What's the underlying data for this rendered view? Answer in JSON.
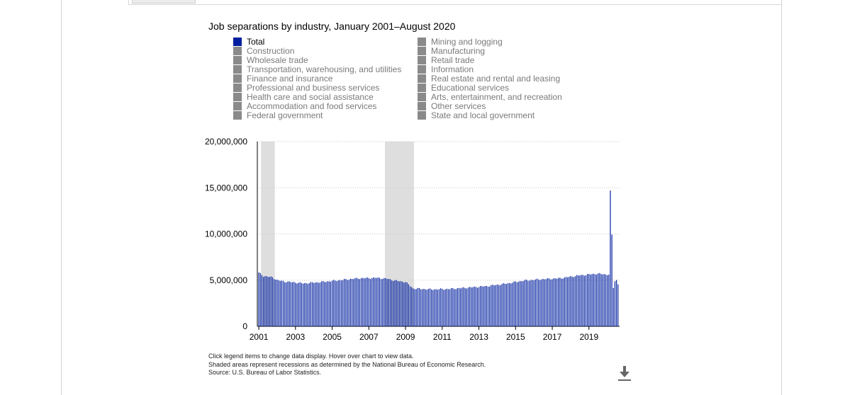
{
  "chart_data": {
    "type": "bar",
    "title": "Job separations by industry, January 2001–August 2020",
    "xlabel": "",
    "ylabel": "",
    "ylim": [
      0,
      20000000
    ],
    "yticks": [
      "0",
      "5,000,000",
      "10,000,000",
      "15,000,000",
      "20,000,000"
    ],
    "xticks": [
      "2001",
      "2003",
      "2005",
      "2007",
      "2009",
      "2011",
      "2013",
      "2015",
      "2017",
      "2019"
    ],
    "grid": true,
    "legend_position": "top",
    "bar_color": "#001f9f",
    "recession_color": "#dedede",
    "recessions": [
      {
        "start": "2001-03",
        "end": "2001-11"
      },
      {
        "start": "2007-12",
        "end": "2009-06"
      }
    ],
    "series": [
      {
        "name": "Total",
        "x_start": "2001-01",
        "x_end": "2020-08",
        "anchors": [
          [
            "2001-01",
            5800000
          ],
          [
            "2001-04",
            5450000
          ],
          [
            "2001-10",
            5300000
          ],
          [
            "2002-01",
            5000000
          ],
          [
            "2002-06",
            4850000
          ],
          [
            "2003-01",
            4750000
          ],
          [
            "2003-06",
            4650000
          ],
          [
            "2004-06",
            4800000
          ],
          [
            "2005-06",
            5000000
          ],
          [
            "2006-06",
            5200000
          ],
          [
            "2007-06",
            5250000
          ],
          [
            "2008-01",
            5150000
          ],
          [
            "2008-06",
            4950000
          ],
          [
            "2009-01",
            4800000
          ],
          [
            "2009-06",
            4100000
          ],
          [
            "2010-06",
            4000000
          ],
          [
            "2011-06",
            4050000
          ],
          [
            "2012-06",
            4200000
          ],
          [
            "2013-06",
            4350000
          ],
          [
            "2014-06",
            4600000
          ],
          [
            "2015-06",
            4950000
          ],
          [
            "2016-06",
            5100000
          ],
          [
            "2017-06",
            5200000
          ],
          [
            "2018-06",
            5500000
          ],
          [
            "2019-06",
            5700000
          ],
          [
            "2020-02",
            5600000
          ],
          [
            "2020-03",
            14600000
          ],
          [
            "2020-04",
            9900000
          ],
          [
            "2020-05",
            4200000
          ],
          [
            "2020-06",
            4900000
          ],
          [
            "2020-07",
            5000000
          ],
          [
            "2020-08",
            4600000
          ]
        ]
      }
    ]
  },
  "legend": {
    "left": [
      "Total",
      "Construction",
      "Wholesale trade",
      "Transportation, warehousing, and utilities",
      "Finance and insurance",
      "Professional and business services",
      "Health care and social assistance",
      "Accommodation and food services",
      "Federal government"
    ],
    "right": [
      "Mining and logging",
      "Manufacturing",
      "Retail trade",
      "Information",
      "Real estate and rental and leasing",
      "Educational services",
      "Arts, entertainment, and recreation",
      "Other services",
      "State and local government"
    ],
    "active": "Total"
  },
  "notes": {
    "line1": "Click legend items to change data display. Hover over chart to view data.",
    "line2": "Shaded areas represent recessions as determined by the National Bureau of Economic Research.",
    "line3": "Source: U.S. Bureau of Labor Statistics."
  },
  "download": {
    "icon": "download-icon"
  }
}
